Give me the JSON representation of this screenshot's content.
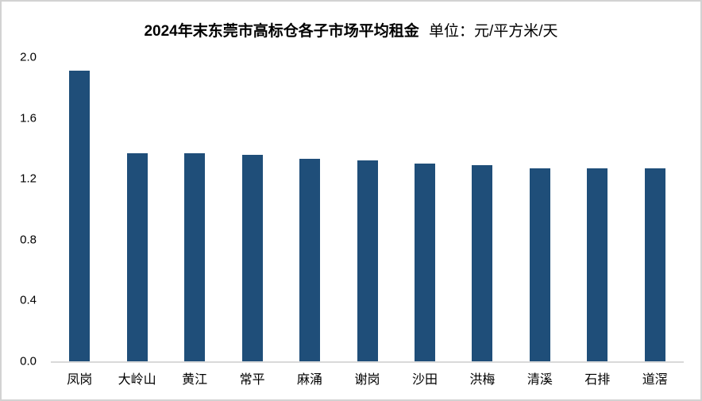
{
  "page": {
    "background": "#FFFFFF",
    "frame_border_color": "#D2D2D2"
  },
  "chart_data": {
    "type": "bar",
    "title": "2024年末东莞市高标仓各子市场平均租金",
    "unit_label": "单位：元/平方米/天",
    "categories": [
      "凤岗",
      "大岭山",
      "黄江",
      "常平",
      "麻涌",
      "谢岗",
      "沙田",
      "洪梅",
      "清溪",
      "石排",
      "道滘"
    ],
    "values": [
      1.91,
      1.37,
      1.37,
      1.36,
      1.33,
      1.32,
      1.3,
      1.29,
      1.27,
      1.27,
      1.27
    ],
    "xlabel": "",
    "ylabel": "",
    "ylim": [
      0.0,
      2.0
    ],
    "ytick_interval": 0.4,
    "ytick_labels": [
      "0.0",
      "0.4",
      "0.8",
      "1.2",
      "1.6",
      "2.0"
    ],
    "bar_color": "#1F4E79",
    "axis_line_color": "#D9D9D9",
    "grid": false,
    "legend_position": "none"
  }
}
